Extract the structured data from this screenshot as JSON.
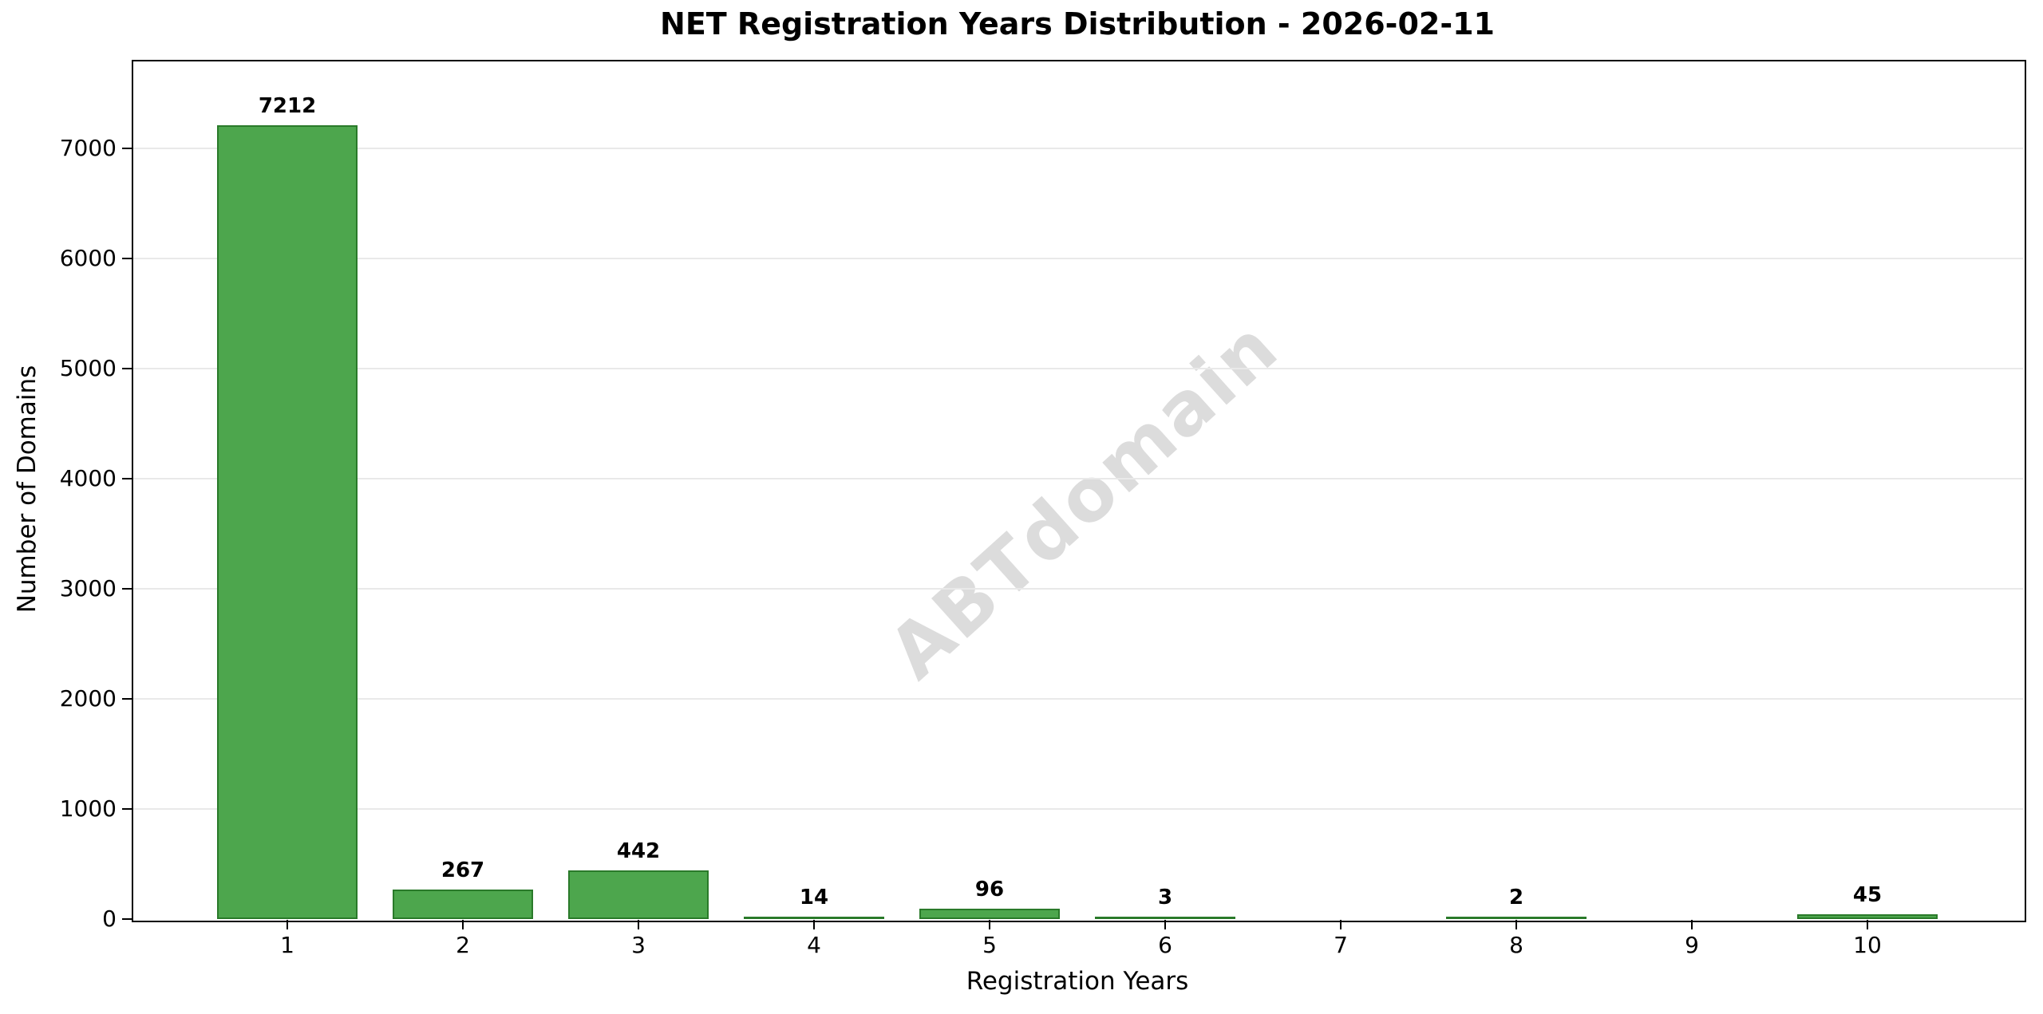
{
  "watermark": "ABTdomain",
  "chart_data": {
    "type": "bar",
    "title": "NET Registration Years Distribution - 2026-02-11",
    "xlabel": "Registration Years",
    "ylabel": "Number of Domains",
    "categories": [
      "1",
      "2",
      "3",
      "4",
      "5",
      "6",
      "7",
      "8",
      "9",
      "10"
    ],
    "values": [
      7212,
      267,
      442,
      14,
      96,
      3,
      0,
      2,
      0,
      45
    ],
    "bar_labels": [
      "7212",
      "267",
      "442",
      "14",
      "96",
      "3",
      "",
      "2",
      "",
      "45"
    ],
    "ylim": [
      0,
      7800
    ],
    "yticks": [
      0,
      1000,
      2000,
      3000,
      4000,
      5000,
      6000,
      7000
    ],
    "grid": "horizontal",
    "legend": "none",
    "colors": {
      "bar_fill": "#4DA64D",
      "bar_edge": "#2A7A2A",
      "grid": "#E9E9E9",
      "watermark": "#DCDCDC",
      "text": "#000000",
      "background": "#FFFFFF"
    }
  }
}
